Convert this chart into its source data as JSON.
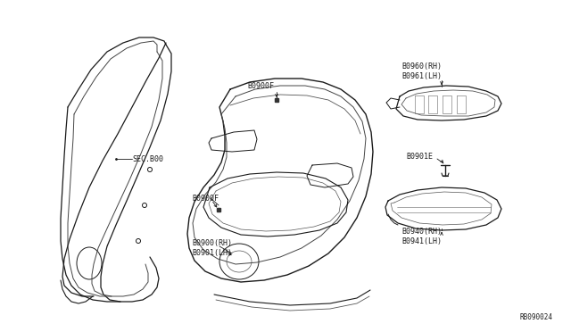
{
  "background_color": "#ffffff",
  "fig_width": 6.4,
  "fig_height": 3.72,
  "dpi": 100,
  "diagram_id": "RB090024",
  "labels": {
    "sec800": "SEC.B00",
    "80900F_top": "B0900F",
    "80900F_bottom": "B0900F",
    "80900_rh_lh": "B0900(RH)\nB0901(LH)",
    "80960_rh_lh": "B0960(RH)\nB0961(LH)",
    "80901E": "B0901E",
    "80940_rh_lh": "B0940(RH)\nB0941(LH)"
  },
  "text_color": "#1a1a1a",
  "line_color": "#1a1a1a",
  "font_size": 6.0
}
